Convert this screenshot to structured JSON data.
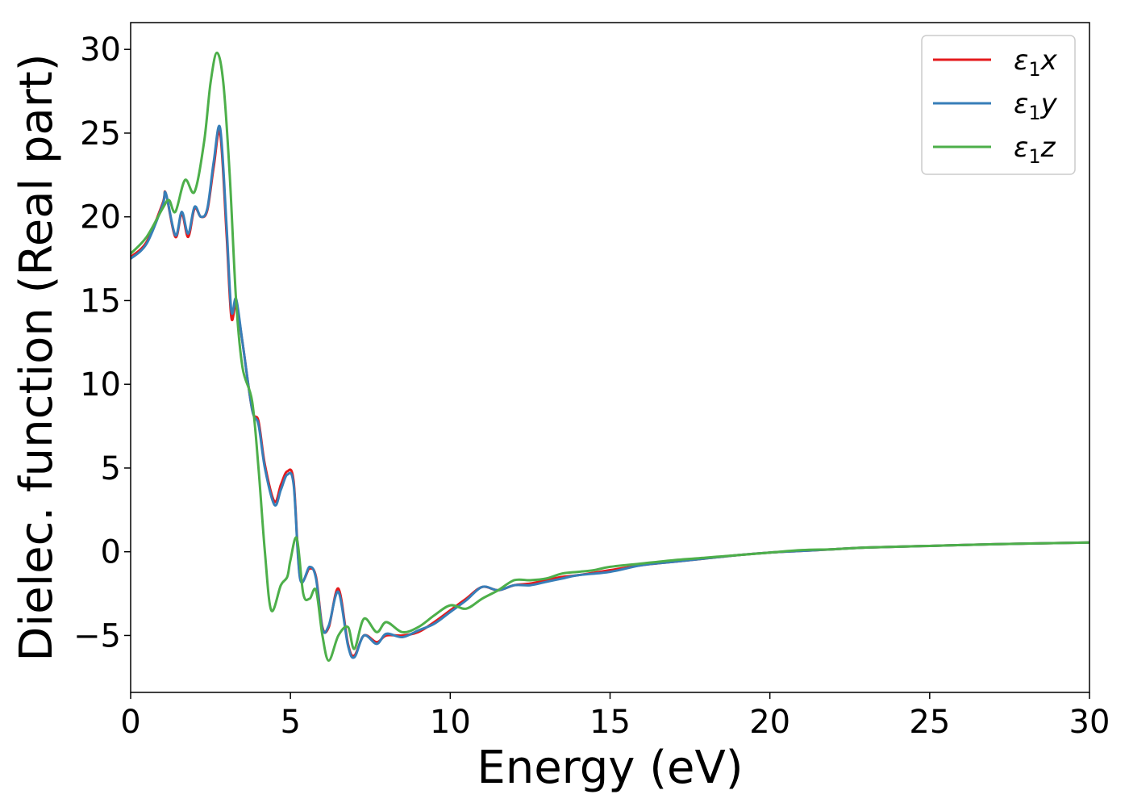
{
  "chart_data": {
    "type": "line",
    "xlabel": "Energy (eV)",
    "ylabel": "Dielec. function (Real part)",
    "xlim": [
      0,
      30
    ],
    "ylim": [
      -8.4,
      31.6
    ],
    "xticks": [
      0,
      5,
      10,
      15,
      20,
      25,
      30
    ],
    "yticks": [
      -5,
      0,
      5,
      10,
      15,
      20,
      25,
      30
    ],
    "grid": false,
    "legend_position": "top-right",
    "series": [
      {
        "name": "ε₁x",
        "legend_main": "ε",
        "legend_sub": "1",
        "legend_suffix": "x",
        "color": "#e41a1c",
        "x": [
          0,
          0.5,
          1.0,
          1.1,
          1.4,
          1.6,
          1.8,
          2.0,
          2.2,
          2.4,
          2.6,
          2.8,
          3.0,
          3.15,
          3.3,
          3.5,
          3.8,
          4.0,
          4.2,
          4.5,
          4.7,
          4.9,
          5.1,
          5.3,
          5.6,
          5.8,
          6.0,
          6.2,
          6.5,
          6.8,
          7.0,
          7.3,
          7.7,
          8.0,
          8.5,
          9.0,
          9.5,
          10.0,
          10.5,
          11.0,
          11.5,
          12.0,
          12.5,
          13.0,
          13.5,
          14.0,
          15.0,
          16.0,
          17.0,
          18.0,
          19.0,
          20.0,
          21.0,
          22.0,
          23.0,
          25.0,
          27.0,
          30.0
        ],
        "y": [
          17.6,
          18.5,
          20.8,
          21.4,
          18.8,
          20.2,
          18.8,
          20.5,
          20.0,
          20.4,
          23.0,
          25.0,
          19.0,
          14.0,
          14.8,
          12.5,
          8.5,
          7.8,
          5.2,
          3.0,
          4.0,
          4.8,
          4.2,
          -1.5,
          -1.0,
          -1.5,
          -4.5,
          -4.5,
          -2.2,
          -5.5,
          -6.2,
          -5.0,
          -5.4,
          -5.0,
          -5.0,
          -4.8,
          -4.2,
          -3.5,
          -2.8,
          -2.1,
          -2.3,
          -2.0,
          -1.9,
          -1.7,
          -1.5,
          -1.4,
          -1.1,
          -0.8,
          -0.6,
          -0.4,
          -0.2,
          -0.05,
          0.05,
          0.15,
          0.25,
          0.35,
          0.45,
          0.55
        ]
      },
      {
        "name": "ε₁y",
        "legend_main": "ε",
        "legend_sub": "1",
        "legend_suffix": "y",
        "color": "#377eb8",
        "x": [
          0,
          0.5,
          1.0,
          1.1,
          1.4,
          1.6,
          1.8,
          2.0,
          2.2,
          2.4,
          2.6,
          2.8,
          3.0,
          3.15,
          3.3,
          3.5,
          3.8,
          4.0,
          4.2,
          4.5,
          4.7,
          4.9,
          5.1,
          5.3,
          5.6,
          5.8,
          6.0,
          6.2,
          6.5,
          6.8,
          7.0,
          7.3,
          7.7,
          8.0,
          8.5,
          9.0,
          9.5,
          10.0,
          10.5,
          11.0,
          11.5,
          12.0,
          12.5,
          13.0,
          13.5,
          14.0,
          15.0,
          16.0,
          17.0,
          18.0,
          19.0,
          20.0,
          21.0,
          22.0,
          23.0,
          25.0,
          27.0,
          30.0
        ],
        "y": [
          17.5,
          18.4,
          20.7,
          21.4,
          18.9,
          20.3,
          19.0,
          20.6,
          20.0,
          20.5,
          23.3,
          25.3,
          19.5,
          14.4,
          15.1,
          12.5,
          8.5,
          7.6,
          5.0,
          2.8,
          3.7,
          4.6,
          4.0,
          -1.6,
          -0.9,
          -1.6,
          -4.6,
          -4.4,
          -2.4,
          -5.6,
          -6.3,
          -5.0,
          -5.5,
          -4.9,
          -5.1,
          -4.7,
          -4.3,
          -3.6,
          -2.9,
          -2.1,
          -2.3,
          -2.0,
          -2.0,
          -1.8,
          -1.6,
          -1.4,
          -1.2,
          -0.8,
          -0.6,
          -0.4,
          -0.2,
          -0.05,
          0.05,
          0.15,
          0.25,
          0.35,
          0.45,
          0.55
        ]
      },
      {
        "name": "ε₁z",
        "legend_main": "ε",
        "legend_sub": "1",
        "legend_suffix": "z",
        "color": "#4daf4a",
        "x": [
          0,
          0.5,
          1.0,
          1.2,
          1.4,
          1.7,
          2.0,
          2.3,
          2.5,
          2.7,
          2.9,
          3.1,
          3.3,
          3.5,
          3.8,
          4.0,
          4.2,
          4.4,
          4.7,
          4.9,
          5.0,
          5.2,
          5.4,
          5.6,
          5.8,
          6.0,
          6.2,
          6.5,
          6.8,
          7.0,
          7.3,
          7.7,
          8.0,
          8.5,
          9.0,
          9.5,
          10.0,
          10.5,
          11.0,
          11.5,
          12.0,
          12.5,
          13.0,
          13.5,
          14.0,
          14.5,
          15.0,
          16.0,
          17.0,
          18.0,
          19.0,
          20.0,
          21.0,
          22.0,
          23.0,
          25.0,
          27.0,
          30.0
        ],
        "y": [
          17.8,
          18.8,
          20.5,
          21.0,
          20.3,
          22.2,
          21.5,
          24.5,
          28.0,
          29.8,
          28.0,
          22.5,
          15.0,
          11.0,
          9.0,
          5.0,
          0.0,
          -3.5,
          -2.0,
          -1.5,
          -0.5,
          0.8,
          -2.5,
          -2.8,
          -2.3,
          -5.0,
          -6.5,
          -5.0,
          -4.5,
          -5.8,
          -4.0,
          -4.8,
          -4.2,
          -4.8,
          -4.5,
          -3.8,
          -3.2,
          -3.4,
          -2.8,
          -2.3,
          -1.7,
          -1.7,
          -1.6,
          -1.3,
          -1.2,
          -1.1,
          -0.9,
          -0.7,
          -0.5,
          -0.35,
          -0.2,
          -0.05,
          0.1,
          0.15,
          0.25,
          0.35,
          0.45,
          0.55
        ]
      }
    ]
  }
}
